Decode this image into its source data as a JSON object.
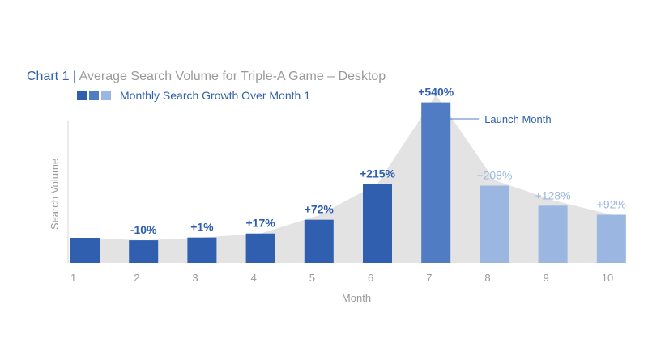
{
  "title": {
    "chart_number": "Chart 1 |",
    "text": "Average Search Volume for Triple-A Game – Desktop"
  },
  "legend": {
    "label": "Monthly Search Growth Over Month 1",
    "swatch_colors": [
      "#2f5fae",
      "#4f7cc2",
      "#9bb6e0"
    ]
  },
  "colors": {
    "dark": "#2f5fae",
    "launch": "#4f7cc2",
    "light": "#9bb6e0",
    "area": "#e3e3e3",
    "axis_text": "#9a9a9a"
  },
  "chart_data": {
    "type": "bar",
    "xlabel": "Month",
    "ylabel": "Search Volume",
    "categories": [
      "1",
      "2",
      "3",
      "4",
      "5",
      "6",
      "7",
      "8",
      "9",
      "10"
    ],
    "values": [
      100,
      90,
      101,
      117,
      172,
      315,
      640,
      308,
      228,
      192
    ],
    "data_labels": [
      "",
      "-10%",
      "+1%",
      "+17%",
      "+72%",
      "+215%",
      "+540%",
      "+208%",
      "+128%",
      "+92%"
    ],
    "bar_tones": [
      "dark",
      "dark",
      "dark",
      "dark",
      "dark",
      "dark",
      "launch",
      "light",
      "light",
      "light"
    ],
    "area_values": [
      100,
      90,
      101,
      117,
      190,
      315,
      670,
      330,
      250,
      192
    ],
    "ylim": [
      0,
      700
    ],
    "annotation": {
      "category": "7",
      "text": "Launch Month"
    },
    "grid": false
  }
}
